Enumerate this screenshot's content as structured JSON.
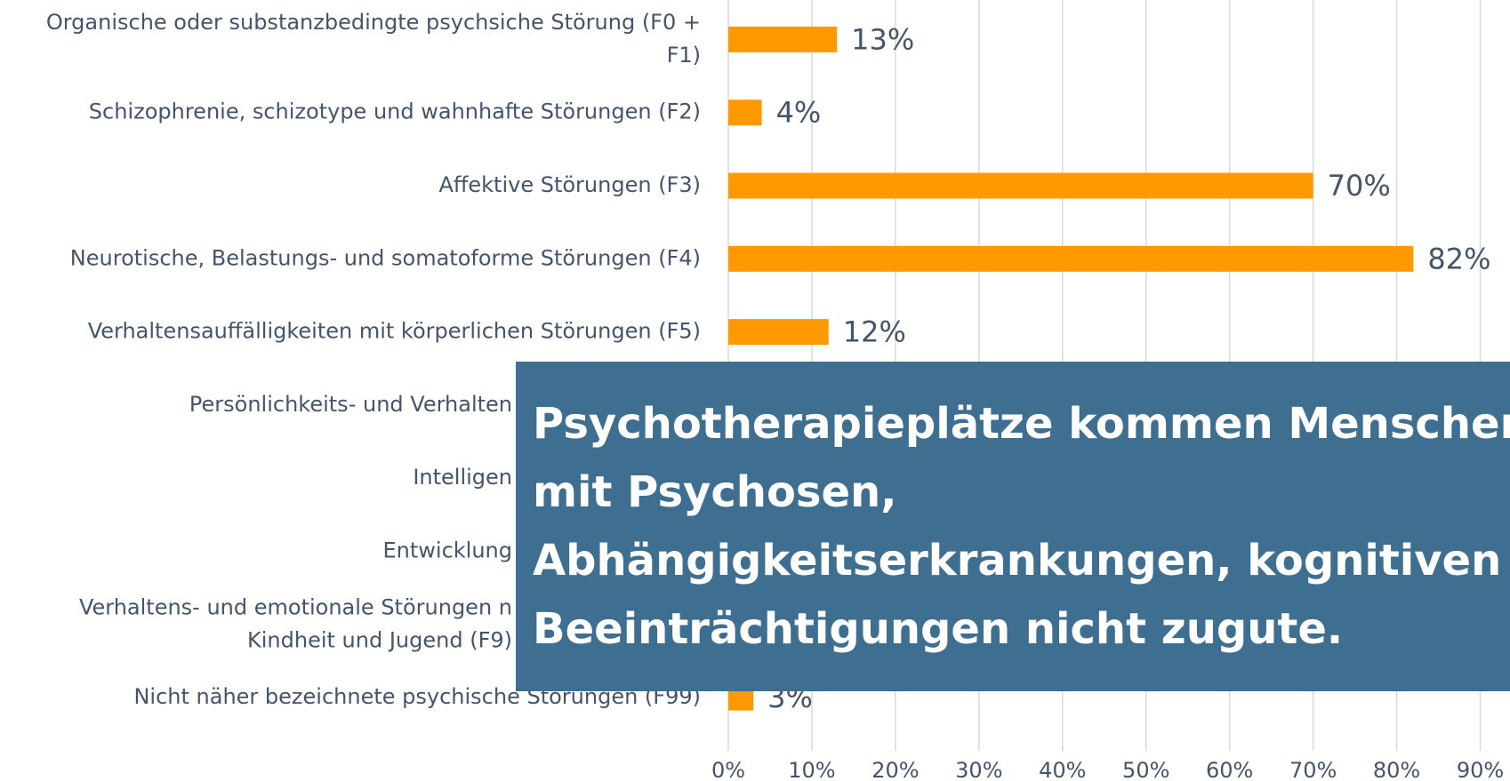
{
  "chart_data": {
    "type": "bar",
    "orientation": "horizontal",
    "categories": [
      [
        "Organische oder substanzbedingte psychsiche Störung (F0 +",
        "F1)"
      ],
      [
        "Schizophrenie, schizotype und wahnhafte Störungen (F2)"
      ],
      [
        "Affektive Störungen (F3)"
      ],
      [
        "Neurotische, Belastungs- und somatoforme Störungen (F4)"
      ],
      [
        "Verhaltensauffälligkeiten mit körperlichen Störungen (F5)"
      ],
      [
        "Persönlichkeits- und Verhalten"
      ],
      [
        "Intelligen"
      ],
      [
        "Entwicklung"
      ],
      [
        "Verhaltens- und emotionale Störungen n",
        "Kindheit und Jugend (F9)"
      ],
      [
        "Nicht näher bezeichnete psychische Störungen (F99)"
      ]
    ],
    "values": [
      13,
      4,
      70,
      82,
      12,
      null,
      null,
      null,
      null,
      3
    ],
    "value_labels": [
      "13%",
      "4%",
      "70%",
      "82%",
      "12%",
      null,
      null,
      null,
      null,
      "3%"
    ],
    "color": "#ff9900",
    "xlim": [
      0,
      90
    ],
    "xticks": [
      {
        "value": 0,
        "label": "0%"
      },
      {
        "value": 10,
        "label": "10%"
      },
      {
        "value": 20,
        "label": "20%"
      },
      {
        "value": 30,
        "label": "30%"
      },
      {
        "value": 40,
        "label": "40%"
      },
      {
        "value": 50,
        "label": "50%"
      },
      {
        "value": 60,
        "label": "60%"
      },
      {
        "value": 70,
        "label": "70%"
      },
      {
        "value": 80,
        "label": "80%"
      },
      {
        "value": 90,
        "label": "90%"
      }
    ],
    "grid": true,
    "annotation": [
      "Psychotherapieplätze kommen Menschen",
      "mit Psychosen,",
      "Abhängigkeitserkrankungen, kognitiven",
      "Beeinträchtigungen nicht zugute."
    ],
    "annotation_color": "#3e6f91"
  }
}
